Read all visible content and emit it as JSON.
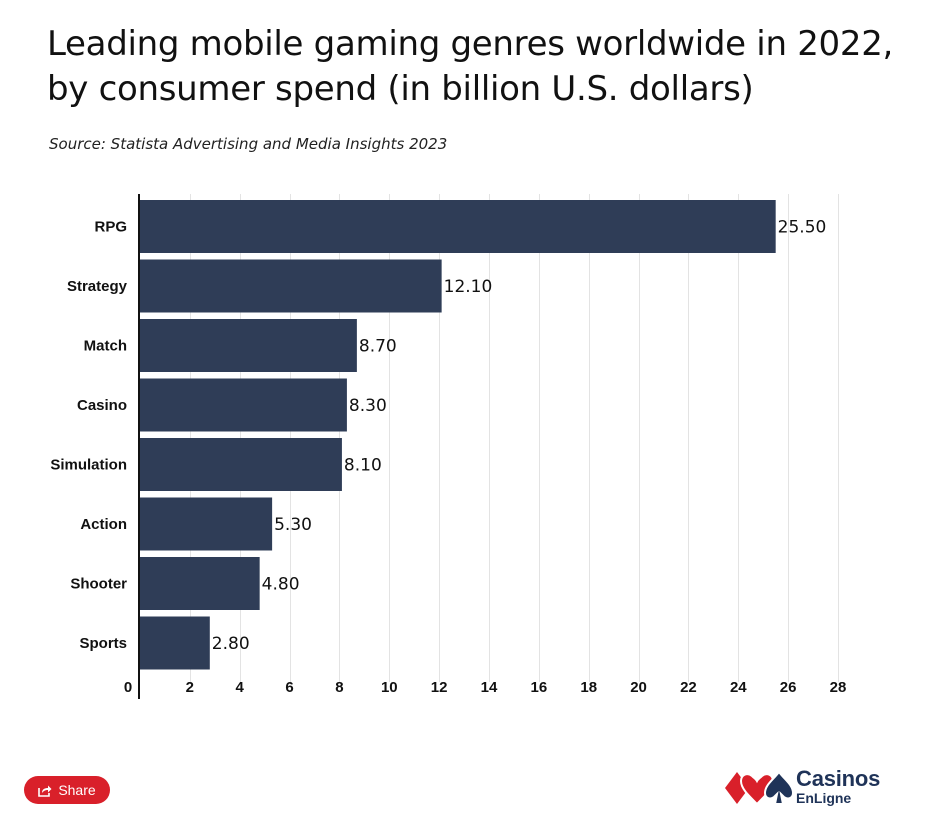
{
  "page": {
    "title_line1": "Leading mobile gaming genres worldwide in 2022,",
    "title_line2": "by consumer spend (in billion U.S. dollars)",
    "source": "Source: Statista Advertising and Media Insights 2023",
    "share_label": "Share",
    "logo_name": "Casinos",
    "logo_sub": "EnLigne"
  },
  "colors": {
    "bar": "#2f3d57",
    "grid": "#e3e3e3",
    "axis": "#111111",
    "share": "#d9202a",
    "logo_red": "#d9202a",
    "logo_navy": "#1f3358"
  },
  "chart_data": {
    "type": "bar",
    "orientation": "horizontal",
    "title": "Leading mobile gaming genres worldwide in 2022, by consumer spend (in billion U.S. dollars)",
    "xlabel": "",
    "ylabel": "",
    "categories": [
      "RPG",
      "Strategy",
      "Match",
      "Casino",
      "Simulation",
      "Action",
      "Shooter",
      "Sports"
    ],
    "values": [
      25.5,
      12.1,
      8.7,
      8.3,
      8.1,
      5.3,
      4.8,
      2.8
    ],
    "value_labels": [
      "25.50",
      "12.10",
      "8.70",
      "8.30",
      "8.10",
      "5.30",
      "4.80",
      "2.80"
    ],
    "xlim": [
      0,
      28
    ],
    "xticks": [
      0,
      2,
      4,
      6,
      8,
      10,
      12,
      14,
      16,
      18,
      20,
      22,
      24,
      26,
      28
    ],
    "grid": true
  }
}
